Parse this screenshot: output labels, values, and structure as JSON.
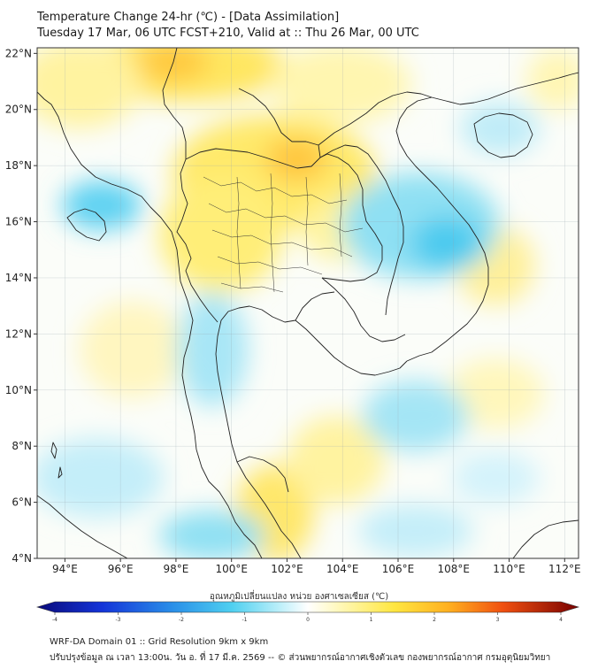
{
  "title": {
    "line1": "Temperature Change 24-hr (℃) - [Data Assimilation]",
    "line2": "Tuesday 17 Mar, 06 UTC FCST+210, Valid at :: Thu 26 Mar, 00 UTC"
  },
  "axes": {
    "lat_labels": [
      "22°N",
      "20°N",
      "18°N",
      "16°N",
      "14°N",
      "12°N",
      "10°N",
      "8°N",
      "6°N",
      "4°N"
    ],
    "lat_values": [
      22,
      20,
      18,
      16,
      14,
      12,
      10,
      8,
      6,
      4
    ],
    "lon_labels": [
      "94°E",
      "96°E",
      "98°E",
      "100°E",
      "102°E",
      "104°E",
      "106°E",
      "108°E",
      "110°E",
      "112°E"
    ],
    "lon_values": [
      94,
      96,
      98,
      100,
      102,
      104,
      106,
      108,
      110,
      112
    ],
    "lon_range": [
      93,
      112.5
    ],
    "lat_range": [
      4,
      22.2
    ]
  },
  "colorbar": {
    "title": "อุณหภูมิเปลี่ยนแปลง หน่วย องศาเซลเซียส (℃)",
    "ticks": [
      "-4",
      "-3",
      "-2",
      "-1",
      "0",
      "1",
      "2",
      "3",
      "4"
    ],
    "tick_values": [
      -4,
      -3,
      -2,
      -1,
      0,
      1,
      2,
      3,
      4
    ],
    "range": [
      -4,
      4
    ]
  },
  "footer": {
    "line1": "WRF-DA Domain 01 :: Grid Resolution 9km x 9km",
    "line2": "ปรับปรุงข้อมูล ณ เวลา 13:00น. วัน อ. ที่ 17 มี.ค. 2569 -- © ส่วนพยากรณ์อากาศเชิงตัวเลข กองพยากรณ์อากาศ กรมอุตุนิยมวิทยา"
  },
  "colors": {
    "warm_light": "#fffbd0",
    "warm": "#ffee70",
    "warm_strong": "#ffc832",
    "cool_light": "#e0f6fc",
    "cool": "#8fe0f3",
    "cool_strong": "#3cc6ee",
    "neutral": "#fbfdf9",
    "border": "#222222"
  }
}
